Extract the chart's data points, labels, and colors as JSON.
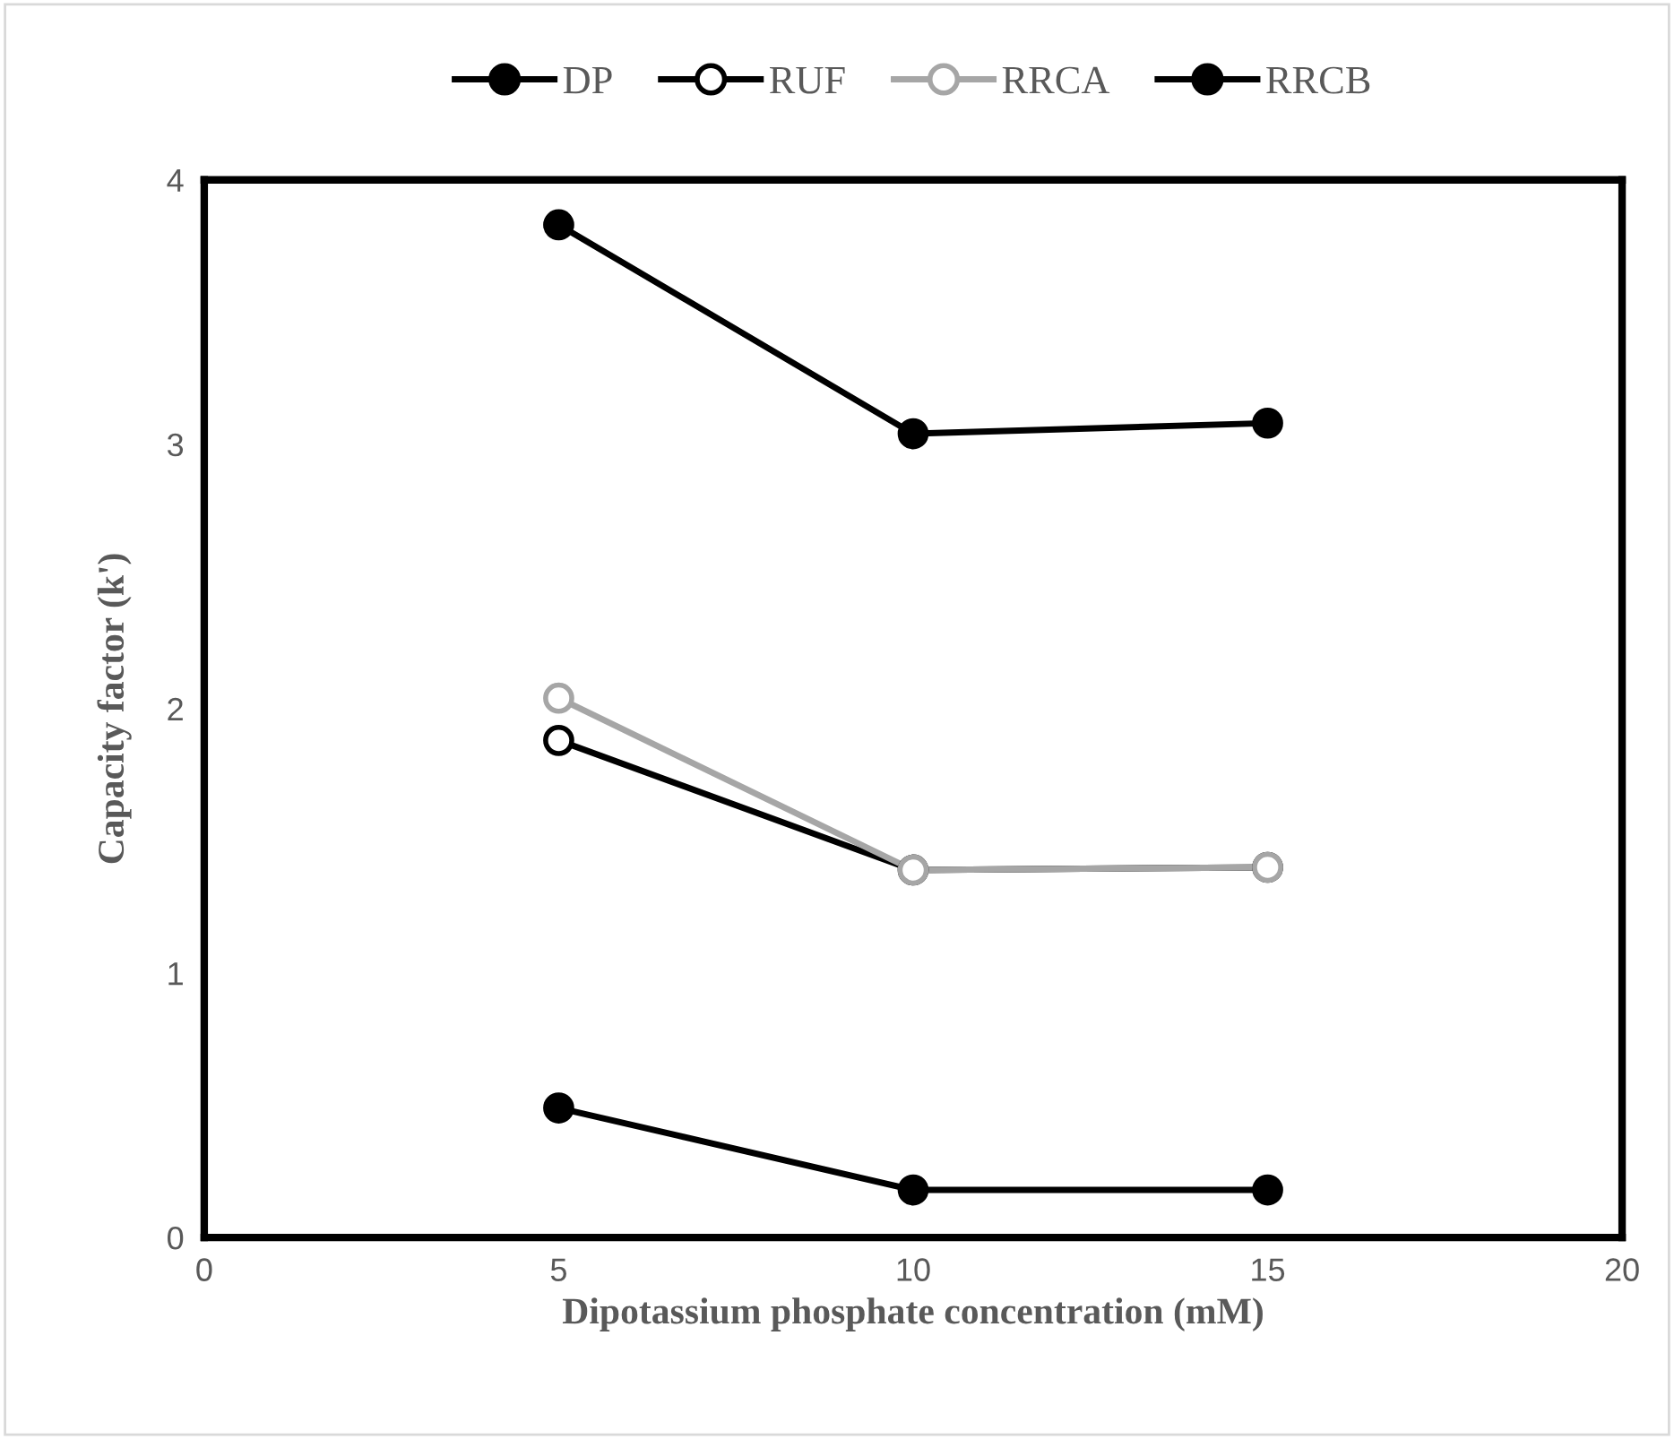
{
  "chart_data": {
    "type": "line",
    "xlabel": "Dipotassium phosphate concentration (mM)",
    "ylabel": "Capacity factor (k')",
    "x": [
      5,
      10,
      15
    ],
    "xlim": [
      0,
      20
    ],
    "xticks": [
      0,
      5,
      10,
      15,
      20
    ],
    "ylim": [
      0,
      4
    ],
    "yticks": [
      0,
      1,
      2,
      3,
      4
    ],
    "grid": false,
    "legend": "top",
    "marker": "circle",
    "line_style": "solid",
    "series": [
      {
        "name": "DP",
        "color": "#000000",
        "colors": [
          "#000000",
          "#000000",
          "#000000"
        ],
        "values": [
          0.49,
          0.18,
          0.18
        ]
      },
      {
        "name": "RUF",
        "color": "#000000",
        "colors": [
          "#ffffff",
          "#ffffff",
          "#ffffff"
        ],
        "values": [
          1.88,
          1.39,
          1.4
        ]
      },
      {
        "name": "RRCA",
        "color": "#a6a6a6",
        "colors": [
          "#ffffff",
          "#ffffff",
          "#ffffff"
        ],
        "values": [
          2.04,
          1.39,
          1.4
        ]
      },
      {
        "name": "RRCB",
        "color": "#000000",
        "colors": [
          "#000000",
          "#000000",
          "#000000"
        ],
        "values": [
          3.83,
          3.04,
          3.08
        ]
      }
    ]
  }
}
